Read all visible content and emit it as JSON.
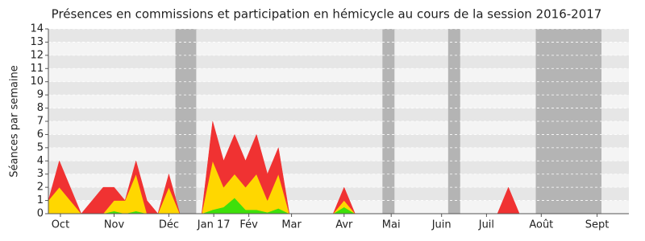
{
  "chart_data": {
    "type": "stacked_area",
    "title": "Présences en commissions et participation en hémicycle au cours de la session 2016-2017",
    "y_label": "Séances par semaine",
    "x": [
      0,
      1,
      2,
      3,
      4,
      5,
      6,
      7,
      8,
      9,
      10,
      11,
      12,
      13,
      14,
      15,
      16,
      17,
      18,
      19,
      20,
      21,
      22,
      23,
      24,
      25,
      26,
      27,
      28,
      29,
      30,
      31,
      32,
      33,
      34,
      35,
      36,
      37,
      38,
      39,
      40,
      41,
      42,
      43,
      44,
      45,
      46,
      47,
      48,
      49,
      50,
      51,
      52,
      53
    ],
    "series": [
      {
        "color": "#3ee00b",
        "values": [
          0,
          0,
          0,
          0,
          0,
          0,
          0.2,
          0,
          0.2,
          0,
          0,
          0,
          0,
          0,
          0,
          0.3,
          0.5,
          1.2,
          0.3,
          0.3,
          0.1,
          0.4,
          0,
          0,
          0,
          0,
          0,
          0.5,
          0,
          0,
          0,
          0,
          0,
          0,
          0,
          0,
          0,
          0,
          0,
          0,
          0,
          0,
          0,
          0,
          0,
          0,
          0,
          0,
          0,
          0,
          0,
          0,
          0,
          0
        ]
      },
      {
        "color": "#ffd700",
        "values": [
          1,
          2,
          1,
          0,
          0,
          0,
          0.8,
          1,
          2.8,
          0,
          0,
          2,
          0,
          0,
          0,
          3.7,
          1.5,
          1.8,
          1.7,
          2.7,
          0.9,
          2.6,
          0,
          0,
          0,
          0,
          0,
          0.5,
          0,
          0,
          0,
          0,
          0,
          0,
          0,
          0,
          0,
          0,
          0,
          0,
          0,
          0,
          0,
          0,
          0,
          0,
          0,
          0,
          0,
          0,
          0,
          0,
          0,
          0
        ]
      },
      {
        "color": "#f03232",
        "values": [
          0,
          2,
          1,
          0,
          1,
          2,
          1,
          0,
          1,
          1,
          0,
          1,
          0,
          0,
          0,
          3,
          2,
          3,
          2,
          3,
          2,
          2,
          0,
          0,
          0,
          0,
          0,
          1,
          0,
          0,
          0,
          0,
          0,
          0,
          0,
          0,
          0,
          0,
          0,
          0,
          0,
          0,
          2,
          0,
          0,
          0,
          0,
          0,
          0,
          0,
          0,
          0,
          0,
          0
        ]
      }
    ],
    "xlim": [
      0,
      53
    ],
    "xticks": [
      {
        "value": 1.1,
        "label": "Oct"
      },
      {
        "value": 6,
        "label": "Nov"
      },
      {
        "value": 11,
        "label": "Déc"
      },
      {
        "value": 15.1,
        "label": "Jan 17"
      },
      {
        "value": 18.3,
        "label": "Fév"
      },
      {
        "value": 22.2,
        "label": "Mar"
      },
      {
        "value": 27,
        "label": "Avr"
      },
      {
        "value": 31.3,
        "label": "Mai"
      },
      {
        "value": 35.9,
        "label": "Juin"
      },
      {
        "value": 40,
        "label": "Juil"
      },
      {
        "value": 45,
        "label": "Août"
      },
      {
        "value": 50.1,
        "label": "Sept"
      }
    ],
    "ylim": [
      0,
      14
    ],
    "yticks": [
      0,
      1,
      2,
      3,
      4,
      5,
      6,
      7,
      8,
      9,
      10,
      11,
      12,
      13,
      14
    ],
    "striped_background": true,
    "shaded_ranges": [
      [
        11.6,
        13.5
      ],
      [
        30.5,
        31.6
      ],
      [
        36.5,
        37.6
      ],
      [
        44.5,
        50.5
      ]
    ],
    "shaded_color": "#b4b4b4"
  }
}
